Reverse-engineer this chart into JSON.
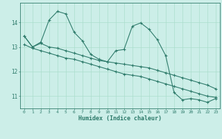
{
  "xlabel": "Humidex (Indice chaleur)",
  "background_color": "#cceee8",
  "line_color": "#2d7a6a",
  "grid_color": "#aaddcc",
  "xlim": [
    -0.5,
    23.5
  ],
  "ylim": [
    10.5,
    14.8
  ],
  "xticks": [
    0,
    1,
    2,
    3,
    4,
    5,
    6,
    7,
    8,
    9,
    10,
    11,
    12,
    13,
    14,
    15,
    16,
    17,
    18,
    19,
    20,
    21,
    22,
    23
  ],
  "yticks": [
    11,
    12,
    13,
    14
  ],
  "series1_y": [
    13.45,
    13.0,
    13.2,
    14.1,
    14.45,
    14.35,
    13.6,
    13.25,
    12.7,
    12.5,
    12.4,
    12.85,
    12.9,
    13.85,
    13.98,
    13.72,
    13.3,
    12.65,
    11.15,
    10.85,
    10.9,
    10.85,
    10.75,
    10.9
  ],
  "series2_y": [
    13.45,
    13.0,
    13.15,
    13.0,
    12.95,
    12.85,
    12.75,
    12.65,
    12.55,
    12.45,
    12.4,
    12.35,
    12.3,
    12.25,
    12.2,
    12.15,
    12.05,
    11.95,
    11.85,
    11.75,
    11.65,
    11.55,
    11.45,
    11.3
  ],
  "series3_y": [
    13.1,
    12.95,
    12.85,
    12.75,
    12.65,
    12.55,
    12.5,
    12.4,
    12.3,
    12.2,
    12.1,
    12.0,
    11.9,
    11.85,
    11.8,
    11.7,
    11.6,
    11.5,
    11.4,
    11.3,
    11.2,
    11.1,
    11.0,
    10.95
  ]
}
